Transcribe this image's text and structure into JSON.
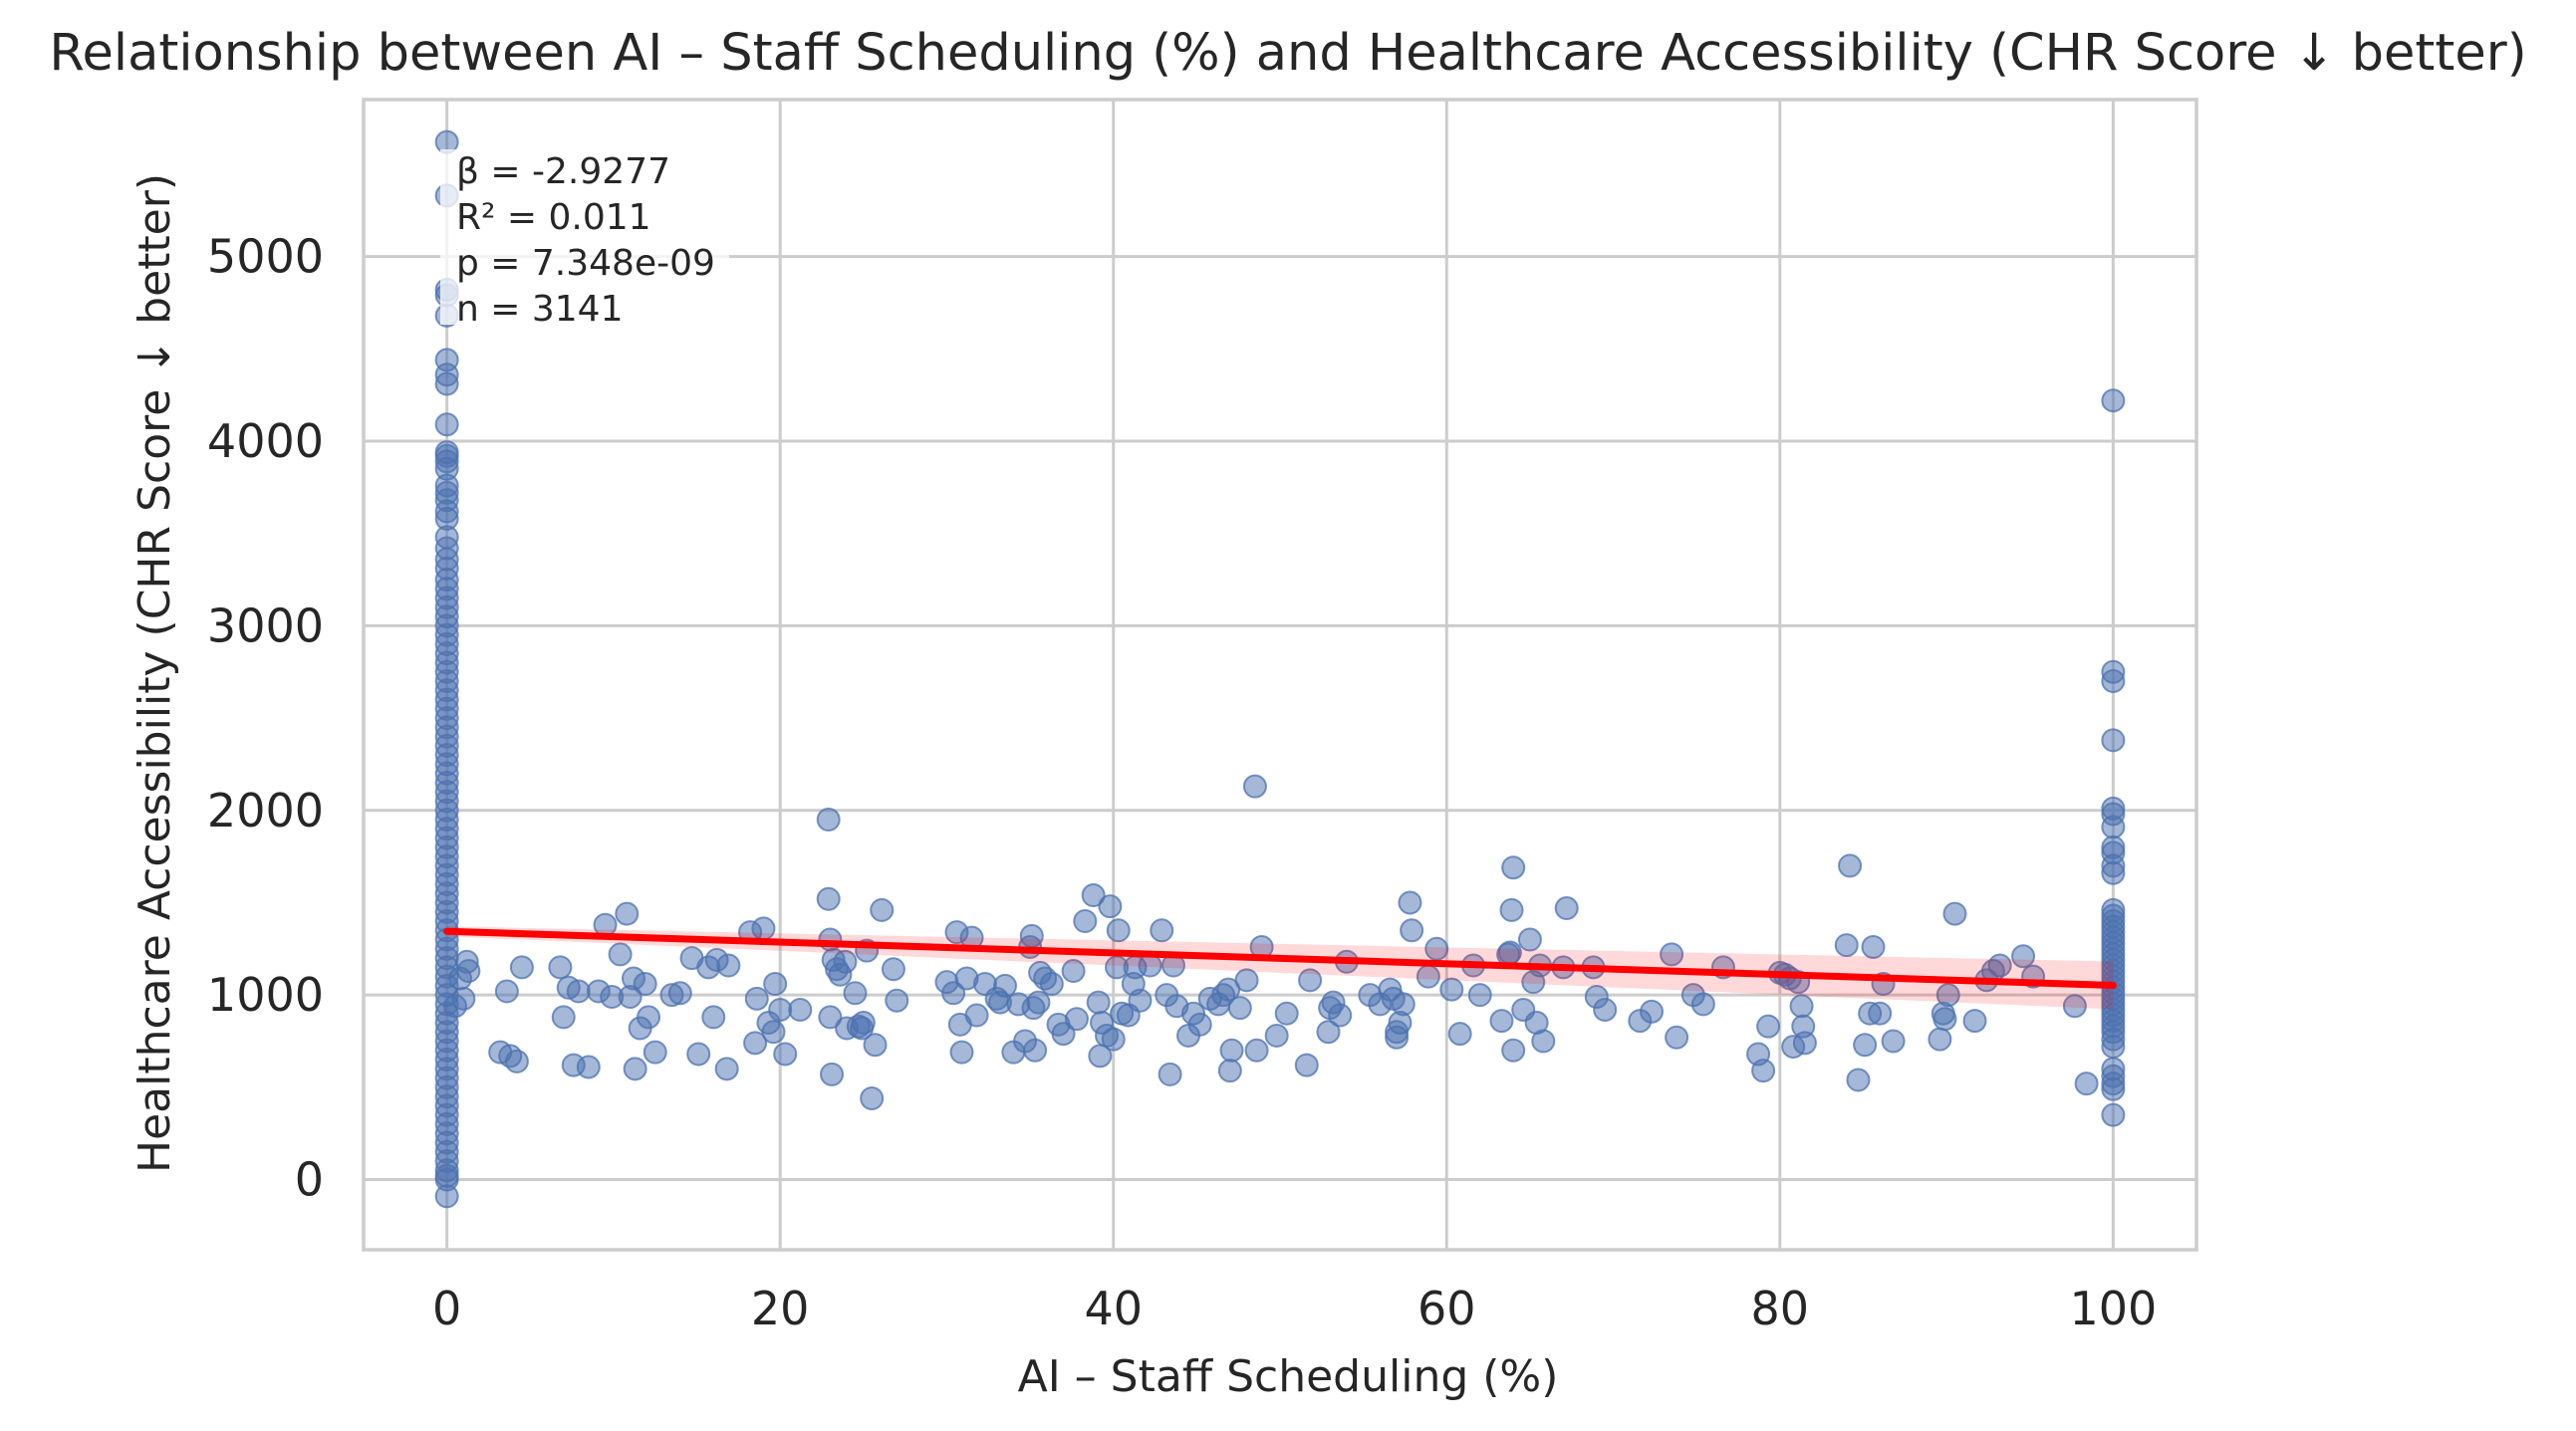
{
  "chart_data": {
    "type": "scatter",
    "title": "Relationship between AI – Staff Scheduling (%) and Healthcare Accessibility (CHR Score ↓ better)",
    "xlabel": "AI – Staff Scheduling (%)",
    "ylabel": "Healthcare Accessibility (CHR Score ↓ better)",
    "xlim": [
      -5,
      105
    ],
    "ylim": [
      -380,
      5850
    ],
    "xticks": [
      0,
      20,
      40,
      60,
      80,
      100
    ],
    "yticks": [
      0,
      1000,
      2000,
      3000,
      4000,
      5000
    ],
    "grid": true,
    "point_color": "#4c72b0",
    "annotation": {
      "line1": "β = -2.9277",
      "line2": "R² = 0.011",
      "line3": "p = 7.348e-09",
      "line4": "n = 3141"
    },
    "regression": {
      "color": "#ff0000",
      "x": [
        0,
        100
      ],
      "y": [
        1345,
        1052
      ]
    },
    "points": [
      [
        0,
        5620
      ],
      [
        0,
        5330
      ],
      [
        0,
        4820
      ],
      [
        0,
        4790
      ],
      [
        0,
        4680
      ],
      [
        0,
        4440
      ],
      [
        0,
        4360
      ],
      [
        0,
        4310
      ],
      [
        0,
        4090
      ],
      [
        0,
        3940
      ],
      [
        0,
        3920
      ],
      [
        0,
        3890
      ],
      [
        0,
        3850
      ],
      [
        0,
        3760
      ],
      [
        0,
        3720
      ],
      [
        0,
        3680
      ],
      [
        0,
        3620
      ],
      [
        0,
        3580
      ],
      [
        0,
        3480
      ],
      [
        0,
        3420
      ],
      [
        0,
        3360
      ],
      [
        0,
        3310
      ],
      [
        0,
        3250
      ],
      [
        0,
        3200
      ],
      [
        0,
        3150
      ],
      [
        0,
        3100
      ],
      [
        0,
        3050
      ],
      [
        0,
        3000
      ],
      [
        0,
        2950
      ],
      [
        0,
        2900
      ],
      [
        0,
        2850
      ],
      [
        0,
        2800
      ],
      [
        0,
        2750
      ],
      [
        0,
        2700
      ],
      [
        0,
        2650
      ],
      [
        0,
        2600
      ],
      [
        0,
        2550
      ],
      [
        0,
        2500
      ],
      [
        0,
        2450
      ],
      [
        0,
        2400
      ],
      [
        0,
        2350
      ],
      [
        0,
        2300
      ],
      [
        0,
        2250
      ],
      [
        0,
        2200
      ],
      [
        0,
        2150
      ],
      [
        0,
        2100
      ],
      [
        0,
        2050
      ],
      [
        0,
        2000
      ],
      [
        0,
        1950
      ],
      [
        0,
        1900
      ],
      [
        0,
        1850
      ],
      [
        0,
        1800
      ],
      [
        0,
        1750
      ],
      [
        0,
        1700
      ],
      [
        0,
        1650
      ],
      [
        0,
        1600
      ],
      [
        0,
        1550
      ],
      [
        0,
        1500
      ],
      [
        0,
        1450
      ],
      [
        0,
        1400
      ],
      [
        0,
        1350
      ],
      [
        0,
        1300
      ],
      [
        0,
        1250
      ],
      [
        0,
        1200
      ],
      [
        0,
        1150
      ],
      [
        0,
        1100
      ],
      [
        0,
        1050
      ],
      [
        0,
        1000
      ],
      [
        0,
        950
      ],
      [
        0,
        900
      ],
      [
        0,
        850
      ],
      [
        0,
        800
      ],
      [
        0,
        750
      ],
      [
        0,
        700
      ],
      [
        0,
        650
      ],
      [
        0,
        600
      ],
      [
        0,
        550
      ],
      [
        0,
        500
      ],
      [
        0,
        450
      ],
      [
        0,
        400
      ],
      [
        0,
        350
      ],
      [
        0,
        300
      ],
      [
        0,
        250
      ],
      [
        0,
        200
      ],
      [
        0,
        150
      ],
      [
        0,
        100
      ],
      [
        0,
        50
      ],
      [
        0,
        20
      ],
      [
        0,
        0
      ],
      [
        0,
        -90
      ],
      [
        0.5,
        940
      ],
      [
        0.8,
        1090
      ],
      [
        1.0,
        980
      ],
      [
        1.2,
        1180
      ],
      [
        1.3,
        1130
      ],
      [
        3.2,
        690
      ],
      [
        3.6,
        1020
      ],
      [
        3.8,
        670
      ],
      [
        4.2,
        640
      ],
      [
        4.5,
        1150
      ],
      [
        6.8,
        1150
      ],
      [
        7.0,
        880
      ],
      [
        7.3,
        1040
      ],
      [
        7.6,
        620
      ],
      [
        7.9,
        1020
      ],
      [
        8.5,
        610
      ],
      [
        9.1,
        1020
      ],
      [
        9.5,
        1380
      ],
      [
        9.9,
        990
      ],
      [
        10.4,
        1220
      ],
      [
        10.8,
        1440
      ],
      [
        11.0,
        990
      ],
      [
        11.2,
        1090
      ],
      [
        11.3,
        600
      ],
      [
        11.6,
        820
      ],
      [
        11.9,
        1060
      ],
      [
        12.1,
        880
      ],
      [
        12.5,
        690
      ],
      [
        13.5,
        1000
      ],
      [
        14.0,
        1010
      ],
      [
        14.7,
        1200
      ],
      [
        15.1,
        680
      ],
      [
        15.7,
        1150
      ],
      [
        16.0,
        880
      ],
      [
        16.2,
        1190
      ],
      [
        16.8,
        600
      ],
      [
        16.9,
        1160
      ],
      [
        18.2,
        1340
      ],
      [
        18.5,
        740
      ],
      [
        18.6,
        980
      ],
      [
        19.0,
        1360
      ],
      [
        19.3,
        850
      ],
      [
        19.6,
        800
      ],
      [
        19.7,
        1060
      ],
      [
        20.0,
        920
      ],
      [
        20.3,
        680
      ],
      [
        21.2,
        920
      ],
      [
        22.9,
        1950
      ],
      [
        22.9,
        1520
      ],
      [
        23.0,
        1300
      ],
      [
        23.2,
        1190
      ],
      [
        23.4,
        1140
      ],
      [
        23.6,
        1110
      ],
      [
        23.9,
        1180
      ],
      [
        23.1,
        570
      ],
      [
        23.0,
        880
      ],
      [
        24.0,
        820
      ],
      [
        24.5,
        1010
      ],
      [
        24.7,
        830
      ],
      [
        24.9,
        820
      ],
      [
        25.0,
        850
      ],
      [
        25.2,
        1240
      ],
      [
        25.5,
        440
      ],
      [
        25.7,
        730
      ],
      [
        26.1,
        1460
      ],
      [
        26.8,
        1140
      ],
      [
        27.0,
        970
      ],
      [
        30.0,
        1070
      ],
      [
        30.4,
        1010
      ],
      [
        30.6,
        1340
      ],
      [
        30.8,
        840
      ],
      [
        30.9,
        690
      ],
      [
        31.2,
        1090
      ],
      [
        31.5,
        1310
      ],
      [
        31.8,
        890
      ],
      [
        32.3,
        1060
      ],
      [
        33.0,
        980
      ],
      [
        33.2,
        960
      ],
      [
        33.5,
        1050
      ],
      [
        34.0,
        690
      ],
      [
        34.3,
        950
      ],
      [
        34.7,
        750
      ],
      [
        35.0,
        1260
      ],
      [
        35.1,
        1320
      ],
      [
        35.2,
        930
      ],
      [
        35.3,
        700
      ],
      [
        35.5,
        960
      ],
      [
        35.6,
        1120
      ],
      [
        35.9,
        1090
      ],
      [
        36.3,
        1060
      ],
      [
        36.7,
        840
      ],
      [
        37.0,
        790
      ],
      [
        37.6,
        1130
      ],
      [
        37.8,
        870
      ],
      [
        38.3,
        1400
      ],
      [
        38.8,
        1540
      ],
      [
        39.1,
        960
      ],
      [
        39.2,
        670
      ],
      [
        39.3,
        850
      ],
      [
        39.6,
        780
      ],
      [
        39.8,
        1480
      ],
      [
        40.0,
        760
      ],
      [
        40.2,
        1150
      ],
      [
        40.3,
        1350
      ],
      [
        40.5,
        900
      ],
      [
        40.9,
        890
      ],
      [
        41.2,
        1060
      ],
      [
        41.3,
        1150
      ],
      [
        41.6,
        970
      ],
      [
        42.2,
        1160
      ],
      [
        42.9,
        1350
      ],
      [
        43.2,
        1000
      ],
      [
        43.4,
        570
      ],
      [
        43.6,
        1160
      ],
      [
        43.8,
        940
      ],
      [
        44.5,
        780
      ],
      [
        44.8,
        900
      ],
      [
        45.2,
        840
      ],
      [
        45.8,
        980
      ],
      [
        46.3,
        950
      ],
      [
        46.6,
        1000
      ],
      [
        46.9,
        1030
      ],
      [
        47.0,
        590
      ],
      [
        47.1,
        700
      ],
      [
        47.6,
        930
      ],
      [
        48.0,
        1080
      ],
      [
        48.5,
        2130
      ],
      [
        48.6,
        700
      ],
      [
        48.9,
        1260
      ],
      [
        49.8,
        780
      ],
      [
        50.4,
        900
      ],
      [
        51.6,
        620
      ],
      [
        51.8,
        1080
      ],
      [
        52.9,
        800
      ],
      [
        53.0,
        930
      ],
      [
        53.2,
        960
      ],
      [
        53.6,
        890
      ],
      [
        54.0,
        1180
      ],
      [
        55.4,
        1000
      ],
      [
        56.0,
        950
      ],
      [
        56.6,
        1030
      ],
      [
        56.8,
        980
      ],
      [
        57.0,
        800
      ],
      [
        57.0,
        770
      ],
      [
        57.2,
        850
      ],
      [
        57.4,
        950
      ],
      [
        57.8,
        1500
      ],
      [
        57.9,
        1350
      ],
      [
        58.9,
        1100
      ],
      [
        59.4,
        1250
      ],
      [
        60.3,
        1030
      ],
      [
        60.8,
        790
      ],
      [
        61.6,
        1160
      ],
      [
        62.0,
        1000
      ],
      [
        63.3,
        860
      ],
      [
        63.7,
        1220
      ],
      [
        63.8,
        1230
      ],
      [
        63.9,
        1460
      ],
      [
        64.0,
        1690
      ],
      [
        64.0,
        700
      ],
      [
        64.6,
        920
      ],
      [
        65.0,
        1300
      ],
      [
        65.2,
        1070
      ],
      [
        65.4,
        850
      ],
      [
        65.6,
        1160
      ],
      [
        65.8,
        750
      ],
      [
        67.0,
        1150
      ],
      [
        67.2,
        1470
      ],
      [
        68.8,
        1150
      ],
      [
        69.0,
        990
      ],
      [
        69.5,
        920
      ],
      [
        71.6,
        860
      ],
      [
        72.3,
        910
      ],
      [
        73.5,
        1220
      ],
      [
        73.8,
        770
      ],
      [
        74.8,
        1000
      ],
      [
        75.4,
        950
      ],
      [
        76.6,
        1150
      ],
      [
        78.7,
        680
      ],
      [
        79.0,
        590
      ],
      [
        79.3,
        830
      ],
      [
        80.0,
        1120
      ],
      [
        80.3,
        1110
      ],
      [
        80.6,
        1090
      ],
      [
        80.8,
        720
      ],
      [
        81.1,
        1070
      ],
      [
        81.3,
        940
      ],
      [
        81.4,
        830
      ],
      [
        81.5,
        740
      ],
      [
        84.0,
        1270
      ],
      [
        84.2,
        1700
      ],
      [
        84.7,
        540
      ],
      [
        85.1,
        730
      ],
      [
        85.4,
        900
      ],
      [
        85.6,
        1260
      ],
      [
        86.0,
        900
      ],
      [
        86.2,
        1060
      ],
      [
        86.8,
        750
      ],
      [
        89.6,
        760
      ],
      [
        89.8,
        900
      ],
      [
        89.9,
        870
      ],
      [
        90.1,
        1000
      ],
      [
        90.5,
        1440
      ],
      [
        91.7,
        860
      ],
      [
        92.4,
        1080
      ],
      [
        92.8,
        1130
      ],
      [
        93.2,
        1160
      ],
      [
        94.6,
        1210
      ],
      [
        95.2,
        1100
      ],
      [
        97.7,
        940
      ],
      [
        98.4,
        520
      ],
      [
        100,
        4220
      ],
      [
        100,
        2750
      ],
      [
        100,
        2700
      ],
      [
        100,
        2380
      ],
      [
        100,
        2010
      ],
      [
        100,
        1980
      ],
      [
        100,
        1910
      ],
      [
        100,
        1800
      ],
      [
        100,
        1770
      ],
      [
        100,
        1700
      ],
      [
        100,
        1660
      ],
      [
        100,
        1460
      ],
      [
        100,
        1430
      ],
      [
        100,
        1400
      ],
      [
        100,
        1370
      ],
      [
        100,
        1340
      ],
      [
        100,
        1310
      ],
      [
        100,
        1280
      ],
      [
        100,
        1250
      ],
      [
        100,
        1220
      ],
      [
        100,
        1190
      ],
      [
        100,
        1160
      ],
      [
        100,
        1130
      ],
      [
        100,
        1100
      ],
      [
        100,
        1070
      ],
      [
        100,
        1040
      ],
      [
        100,
        1010
      ],
      [
        100,
        980
      ],
      [
        100,
        950
      ],
      [
        100,
        920
      ],
      [
        100,
        890
      ],
      [
        100,
        860
      ],
      [
        100,
        830
      ],
      [
        100,
        800
      ],
      [
        100,
        760
      ],
      [
        100,
        720
      ],
      [
        100,
        600
      ],
      [
        100,
        560
      ],
      [
        100,
        520
      ],
      [
        100,
        490
      ],
      [
        100,
        350
      ]
    ]
  }
}
